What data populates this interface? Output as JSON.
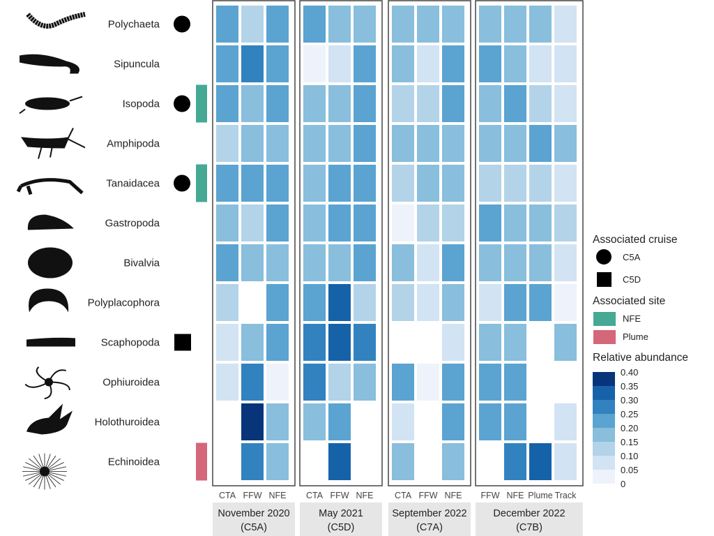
{
  "chart_data": {
    "type": "heatmap",
    "title": "",
    "species": [
      "Polychaeta",
      "Sipuncula",
      "Isopoda",
      "Amphipoda",
      "Tanaidacea",
      "Gastropoda",
      "Bivalvia",
      "Polyplacophora",
      "Scaphopoda",
      "Ophiuroidea",
      "Holothuroidea",
      "Echinoidea"
    ],
    "associated_cruise": {
      "Polychaeta": "C5A",
      "Isopoda": "C5A",
      "Tanaidacea": "C5A",
      "Scaphopoda": "C5D"
    },
    "associated_site": {
      "Isopoda": "NFE",
      "Tanaidacea": "NFE",
      "Echinoidea": "Plume"
    },
    "panels": [
      {
        "label": "November 2020",
        "sublabel": "(C5A)",
        "columns": [
          "CTA",
          "FFW",
          "NFE"
        ],
        "values": [
          [
            0.225,
            0.125,
            0.225
          ],
          [
            0.225,
            0.275,
            0.225
          ],
          [
            0.225,
            0.175,
            0.225
          ],
          [
            0.125,
            0.175,
            0.175
          ],
          [
            0.225,
            0.225,
            0.225
          ],
          [
            0.175,
            0.125,
            0.225
          ],
          [
            0.225,
            0.175,
            0.175
          ],
          [
            0.125,
            null,
            0.225
          ],
          [
            0.075,
            0.175,
            0.225
          ],
          [
            0.075,
            0.275,
            0.025
          ],
          [
            null,
            0.375,
            0.175
          ],
          [
            null,
            0.275,
            0.175
          ]
        ]
      },
      {
        "label": "May 2021",
        "sublabel": "(C5D)",
        "columns": [
          "CTA",
          "FFW",
          "NFE"
        ],
        "values": [
          [
            0.225,
            0.175,
            0.175
          ],
          [
            0.025,
            0.075,
            0.225
          ],
          [
            0.175,
            0.175,
            0.225
          ],
          [
            0.175,
            0.175,
            0.225
          ],
          [
            0.175,
            0.225,
            0.225
          ],
          [
            0.175,
            0.225,
            0.225
          ],
          [
            0.175,
            0.175,
            0.225
          ],
          [
            0.225,
            0.325,
            0.125
          ],
          [
            0.275,
            0.325,
            0.275
          ],
          [
            0.275,
            0.125,
            0.175
          ],
          [
            0.175,
            0.225,
            null
          ],
          [
            null,
            0.325,
            null
          ]
        ]
      },
      {
        "label": "September 2022",
        "sublabel": "(C7A)",
        "columns": [
          "CTA",
          "FFW",
          "NFE"
        ],
        "values": [
          [
            0.175,
            0.175,
            0.175
          ],
          [
            0.175,
            0.075,
            0.225
          ],
          [
            0.125,
            0.125,
            0.225
          ],
          [
            0.175,
            0.175,
            0.175
          ],
          [
            0.125,
            0.175,
            0.175
          ],
          [
            0.025,
            0.125,
            0.125
          ],
          [
            0.175,
            0.075,
            0.225
          ],
          [
            0.125,
            0.075,
            0.175
          ],
          [
            null,
            null,
            0.075
          ],
          [
            0.225,
            0.025,
            0.225
          ],
          [
            0.075,
            null,
            0.225
          ],
          [
            0.175,
            null,
            0.175
          ]
        ]
      },
      {
        "label": "December 2022",
        "sublabel": "(C7B)",
        "columns": [
          "FFW",
          "NFE",
          "Plume",
          "Track"
        ],
        "values": [
          [
            0.175,
            0.175,
            0.175,
            0.075
          ],
          [
            0.225,
            0.175,
            0.075,
            0.075
          ],
          [
            0.175,
            0.225,
            0.125,
            0.075
          ],
          [
            0.175,
            0.175,
            0.225,
            0.175
          ],
          [
            0.125,
            0.125,
            0.125,
            0.075
          ],
          [
            0.225,
            0.175,
            0.175,
            0.125
          ],
          [
            0.175,
            0.175,
            0.175,
            0.075
          ],
          [
            0.075,
            0.225,
            0.225,
            0.025
          ],
          [
            0.175,
            0.175,
            null,
            0.175
          ],
          [
            0.225,
            0.225,
            null,
            null
          ],
          [
            0.225,
            0.225,
            null,
            0.075
          ],
          [
            null,
            0.275,
            0.325,
            0.075
          ]
        ]
      }
    ],
    "legend": {
      "cruise_title": "Associated cruise",
      "cruise_items": [
        {
          "label": "C5A",
          "shape": "circle"
        },
        {
          "label": "C5D",
          "shape": "square"
        }
      ],
      "site_title": "Associated site",
      "site_items": [
        {
          "label": "NFE",
          "color": "#45a994"
        },
        {
          "label": "Plume",
          "color": "#d4677a"
        }
      ],
      "colorbar_title": "Relative abundance",
      "colorbar_ticks": [
        "0.40",
        "0.35",
        "0.30",
        "0.25",
        "0.20",
        "0.15",
        "0.10",
        "0.05",
        "0"
      ],
      "colorbar_range": [
        0,
        0.4
      ],
      "colors": [
        "#eef3fb",
        "#d2e3f3",
        "#b3d3e8",
        "#89bedc",
        "#5ba3d0",
        "#3282bf",
        "#1662a9",
        "#08357a"
      ]
    },
    "silhouette_icons": [
      "polychaete-worm",
      "sipunculid-worm",
      "isopod",
      "amphipod",
      "tanaid",
      "snail-shell",
      "clam-shell",
      "chiton",
      "tusk-shell",
      "brittle-star",
      "sea-cucumber",
      "sea-urchin"
    ]
  }
}
